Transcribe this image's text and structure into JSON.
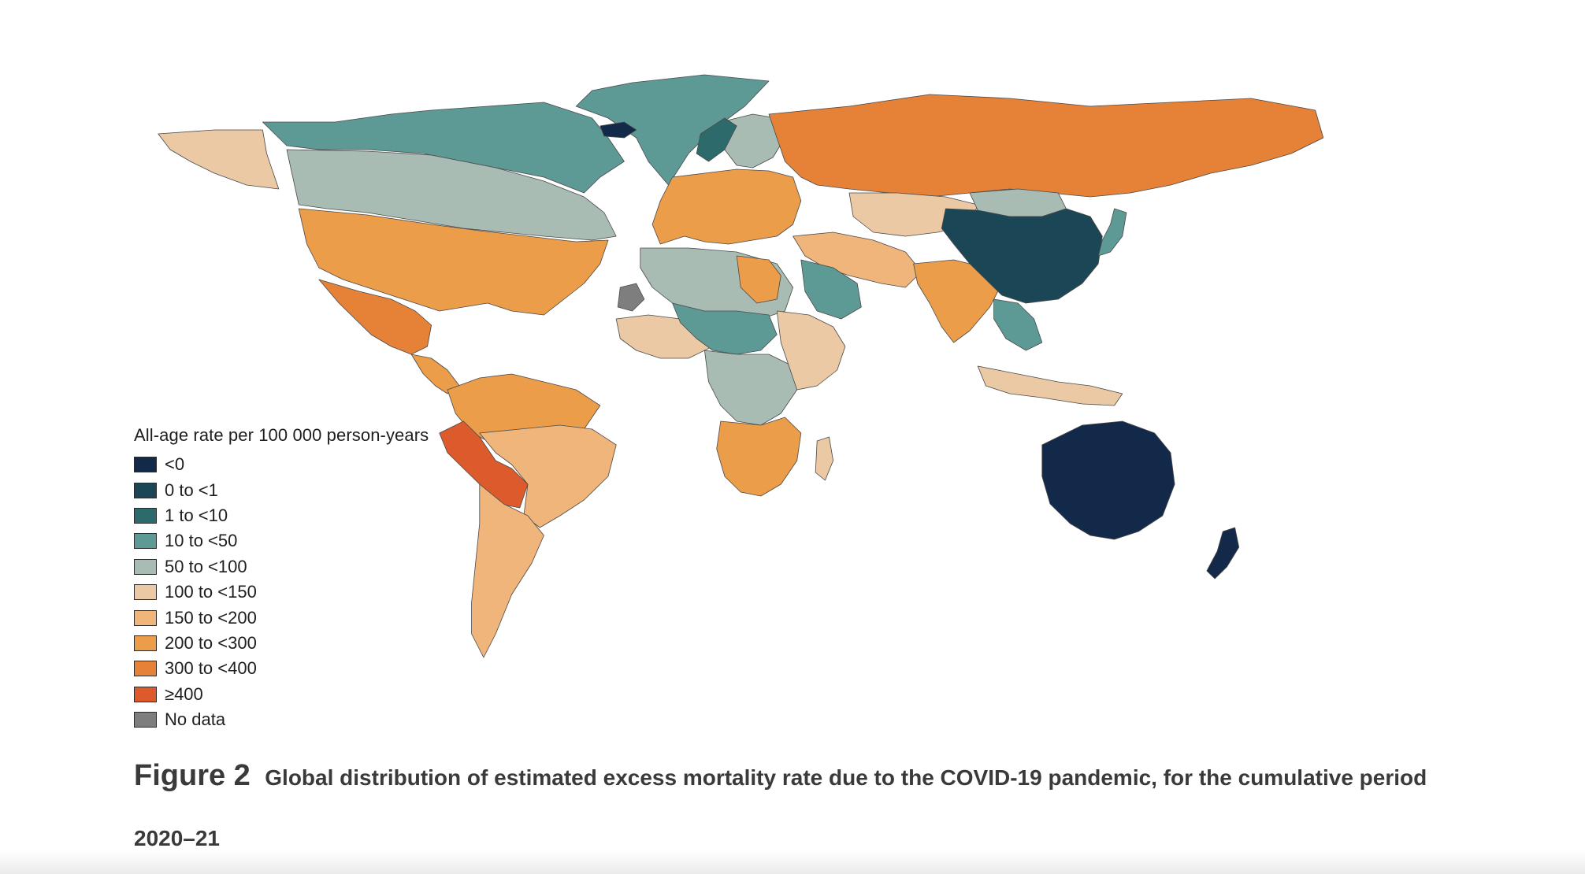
{
  "legend": {
    "title": "All-age rate per 100 000 person-years",
    "items": [
      {
        "label": "<0",
        "color": "#13294a"
      },
      {
        "label": "0 to <1",
        "color": "#1b4656"
      },
      {
        "label": "1 to <10",
        "color": "#2c6a6c"
      },
      {
        "label": "10 to <50",
        "color": "#5e9a95"
      },
      {
        "label": "50 to <100",
        "color": "#a9bcb3"
      },
      {
        "label": "100 to <150",
        "color": "#ecc9a5"
      },
      {
        "label": "150 to <200",
        "color": "#f0b57a"
      },
      {
        "label": "200 to <300",
        "color": "#eb9d49"
      },
      {
        "label": "300 to <400",
        "color": "#e68237"
      },
      {
        "label": "≥400",
        "color": "#dc5a2c"
      },
      {
        "label": "No data",
        "color": "#7e7e7e"
      }
    ]
  },
  "caption": {
    "prefix": "Figure 2",
    "text": "Global distribution of estimated excess mortality rate due to the COVID-19 pandemic, for the cumulative period",
    "text_line2": "2020–21"
  },
  "regions": [
    {
      "name": "greenland",
      "color": "#5e9a95"
    },
    {
      "name": "canada",
      "color": "#5e9a95"
    },
    {
      "name": "canada-south",
      "color": "#a9bcb3"
    },
    {
      "name": "alaska",
      "color": "#ecc9a5"
    },
    {
      "name": "usa",
      "color": "#eb9d49"
    },
    {
      "name": "mexico",
      "color": "#e68237"
    },
    {
      "name": "central-america",
      "color": "#eb9d49"
    },
    {
      "name": "south-america-north",
      "color": "#eb9d49"
    },
    {
      "name": "peru-bolivia",
      "color": "#dc5a2c"
    },
    {
      "name": "brazil",
      "color": "#f0b57a"
    },
    {
      "name": "south-america-south",
      "color": "#f0b57a"
    },
    {
      "name": "europe",
      "color": "#eb9d49"
    },
    {
      "name": "scandinavia",
      "color": "#a9bcb3"
    },
    {
      "name": "norway",
      "color": "#2c6a6c"
    },
    {
      "name": "russia",
      "color": "#e68237"
    },
    {
      "name": "iceland",
      "color": "#13294a"
    },
    {
      "name": "north-africa",
      "color": "#a9bcb3"
    },
    {
      "name": "libya",
      "color": "#eb9d49"
    },
    {
      "name": "west-africa",
      "color": "#ecc9a5"
    },
    {
      "name": "sahel",
      "color": "#5e9a95"
    },
    {
      "name": "central-africa",
      "color": "#a9bcb3"
    },
    {
      "name": "east-africa",
      "color": "#ecc9a5"
    },
    {
      "name": "southern-africa",
      "color": "#eb9d49"
    },
    {
      "name": "madagascar",
      "color": "#ecc9a5"
    },
    {
      "name": "middle-east",
      "color": "#f0b57a"
    },
    {
      "name": "saudi-arabia",
      "color": "#5e9a95"
    },
    {
      "name": "central-asia",
      "color": "#ecc9a5"
    },
    {
      "name": "mongolia",
      "color": "#a9bcb3"
    },
    {
      "name": "india",
      "color": "#eb9d49"
    },
    {
      "name": "china",
      "color": "#1b4656"
    },
    {
      "name": "southeast-asia",
      "color": "#5e9a95"
    },
    {
      "name": "japan",
      "color": "#5e9a95"
    },
    {
      "name": "indonesia",
      "color": "#ecc9a5"
    },
    {
      "name": "australia",
      "color": "#13294a"
    },
    {
      "name": "new-zealand",
      "color": "#13294a"
    },
    {
      "name": "western-sahara",
      "color": "#7e7e7e"
    }
  ]
}
